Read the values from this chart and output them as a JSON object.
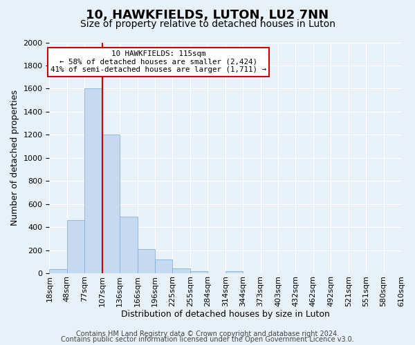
{
  "title": "10, HAWKFIELDS, LUTON, LU2 7NN",
  "subtitle": "Size of property relative to detached houses in Luton",
  "xlabel": "Distribution of detached houses by size in Luton",
  "ylabel": "Number of detached properties",
  "bin_labels": [
    "18sqm",
    "48sqm",
    "77sqm",
    "107sqm",
    "136sqm",
    "166sqm",
    "196sqm",
    "225sqm",
    "255sqm",
    "284sqm",
    "314sqm",
    "344sqm",
    "373sqm",
    "403sqm",
    "432sqm",
    "462sqm",
    "492sqm",
    "521sqm",
    "551sqm",
    "580sqm",
    "610sqm"
  ],
  "bar_values": [
    35,
    460,
    1600,
    1200,
    490,
    210,
    120,
    45,
    20,
    0,
    20,
    0,
    0,
    0,
    0,
    0,
    0,
    0,
    0,
    0
  ],
  "bar_color": "#c5d9f1",
  "bar_edge_color": "#7ba7d4",
  "ylim": [
    0,
    2000
  ],
  "yticks": [
    0,
    200,
    400,
    600,
    800,
    1000,
    1200,
    1400,
    1600,
    1800,
    2000
  ],
  "vline_x": 3.0,
  "vline_color": "#cc0000",
  "annotation_title": "10 HAWKFIELDS: 115sqm",
  "annotation_line1": "← 58% of detached houses are smaller (2,424)",
  "annotation_line2": "41% of semi-detached houses are larger (1,711) →",
  "annotation_box_color": "#ffffff",
  "annotation_box_edgecolor": "#cc0000",
  "footer_line1": "Contains HM Land Registry data © Crown copyright and database right 2024.",
  "footer_line2": "Contains public sector information licensed under the Open Government Licence v3.0.",
  "background_color": "#e8f0f8",
  "plot_background": "#e8f0f8",
  "title_fontsize": 13,
  "subtitle_fontsize": 10,
  "axis_label_fontsize": 9,
  "tick_fontsize": 8,
  "footer_fontsize": 7
}
